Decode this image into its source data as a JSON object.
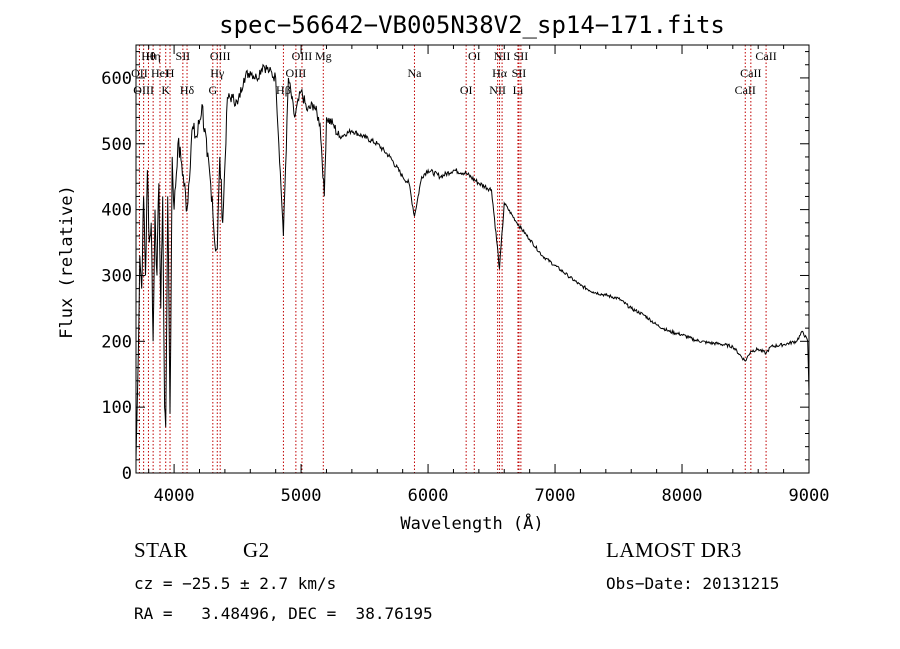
{
  "chart_data": {
    "type": "line",
    "title": "spec−56642−VB005N38V2_sp14−171.fits",
    "xlabel": "Wavelength (Å)",
    "ylabel": "Flux (relative)",
    "xlim": [
      3700,
      9000
    ],
    "ylim": [
      0,
      650
    ],
    "x_ticks": [
      4000,
      5000,
      6000,
      7000,
      8000,
      9000
    ],
    "y_ticks": [
      0,
      100,
      200,
      300,
      400,
      500,
      600
    ],
    "series": [
      {
        "name": "flux",
        "x": [
          3700,
          3715,
          3730,
          3745,
          3760,
          3775,
          3790,
          3805,
          3820,
          3835,
          3850,
          3865,
          3880,
          3895,
          3910,
          3925,
          3934,
          3950,
          3968,
          3985,
          4000,
          4030,
          4060,
          4102,
          4140,
          4180,
          4220,
          4260,
          4300,
          4320,
          4340,
          4360,
          4383,
          4420,
          4460,
          4500,
          4550,
          4600,
          4650,
          4700,
          4750,
          4800,
          4861,
          4900,
          4950,
          5000,
          5050,
          5100,
          5150,
          5183,
          5200,
          5250,
          5300,
          5400,
          5500,
          5600,
          5700,
          5800,
          5850,
          5893,
          5950,
          6000,
          6100,
          6200,
          6300,
          6400,
          6500,
          6563,
          6600,
          6700,
          6800,
          6900,
          7000,
          7100,
          7200,
          7300,
          7400,
          7500,
          7600,
          7700,
          7800,
          7900,
          8000,
          8100,
          8200,
          8300,
          8400,
          8498,
          8542,
          8600,
          8662,
          8700,
          8800,
          8900,
          8950,
          8990,
          9000
        ],
        "y": [
          20,
          150,
          330,
          280,
          420,
          300,
          460,
          350,
          380,
          200,
          400,
          300,
          440,
          250,
          420,
          100,
          70,
          420,
          90,
          480,
          400,
          500,
          470,
          400,
          520,
          510,
          560,
          480,
          420,
          350,
          340,
          480,
          380,
          570,
          570,
          560,
          600,
          610,
          600,
          620,
          610,
          600,
          360,
          600,
          540,
          580,
          550,
          560,
          530,
          420,
          540,
          530,
          510,
          520,
          510,
          500,
          480,
          450,
          440,
          390,
          450,
          460,
          450,
          460,
          455,
          440,
          430,
          310,
          410,
          380,
          355,
          330,
          315,
          300,
          285,
          275,
          270,
          265,
          250,
          240,
          225,
          215,
          210,
          202,
          198,
          196,
          192,
          170,
          185,
          188,
          182,
          192,
          195,
          200,
          215,
          200,
          120
        ]
      }
    ],
    "emission_lines": [
      {
        "label": "Hθ",
        "wave": 3798
      },
      {
        "label": "OII",
        "wave": 3727
      },
      {
        "label": "OIII",
        "wave": 3760
      },
      {
        "label": "Hη",
        "wave": 3835
      },
      {
        "label": "HeI",
        "wave": 3889
      },
      {
        "label": "K",
        "wave": 3934
      },
      {
        "label": "SII",
        "wave": 4069
      },
      {
        "label": "H",
        "wave": 3968
      },
      {
        "label": "Hδ",
        "wave": 4102
      },
      {
        "label": "OIII",
        "wave": 4363
      },
      {
        "label": "Hγ",
        "wave": 4340
      },
      {
        "label": "G",
        "wave": 4305
      },
      {
        "label": "OIII",
        "wave": 5007
      },
      {
        "label": "OIII",
        "wave": 4959
      },
      {
        "label": "Hβ",
        "wave": 4861
      },
      {
        "label": "Mg",
        "wave": 5175
      },
      {
        "label": "Na",
        "wave": 5893
      },
      {
        "label": "OI",
        "wave": 6300
      },
      {
        "label": "OI",
        "wave": 6364
      },
      {
        "label": "Hα",
        "wave": 6563
      },
      {
        "label": "NII",
        "wave": 6548
      },
      {
        "label": "NII",
        "wave": 6583
      },
      {
        "label": "SII",
        "wave": 6716
      },
      {
        "label": "Li",
        "wave": 6708
      },
      {
        "label": "SII",
        "wave": 6731
      },
      {
        "label": "CaII",
        "wave": 8542
      },
      {
        "label": "CaII",
        "wave": 8498
      },
      {
        "label": "CaII",
        "wave": 8662
      }
    ]
  },
  "info": {
    "object_class": "STAR",
    "subclass": "G2",
    "survey": "LAMOST DR3",
    "cz": "cz = −25.5 ± 2.7 km/s",
    "obs_date": "Obs−Date: 20131215",
    "coords": "RA =   3.48496, DEC =  38.76195"
  },
  "colors": {
    "spectrum": "#000000",
    "emission_line": "#c00000"
  }
}
